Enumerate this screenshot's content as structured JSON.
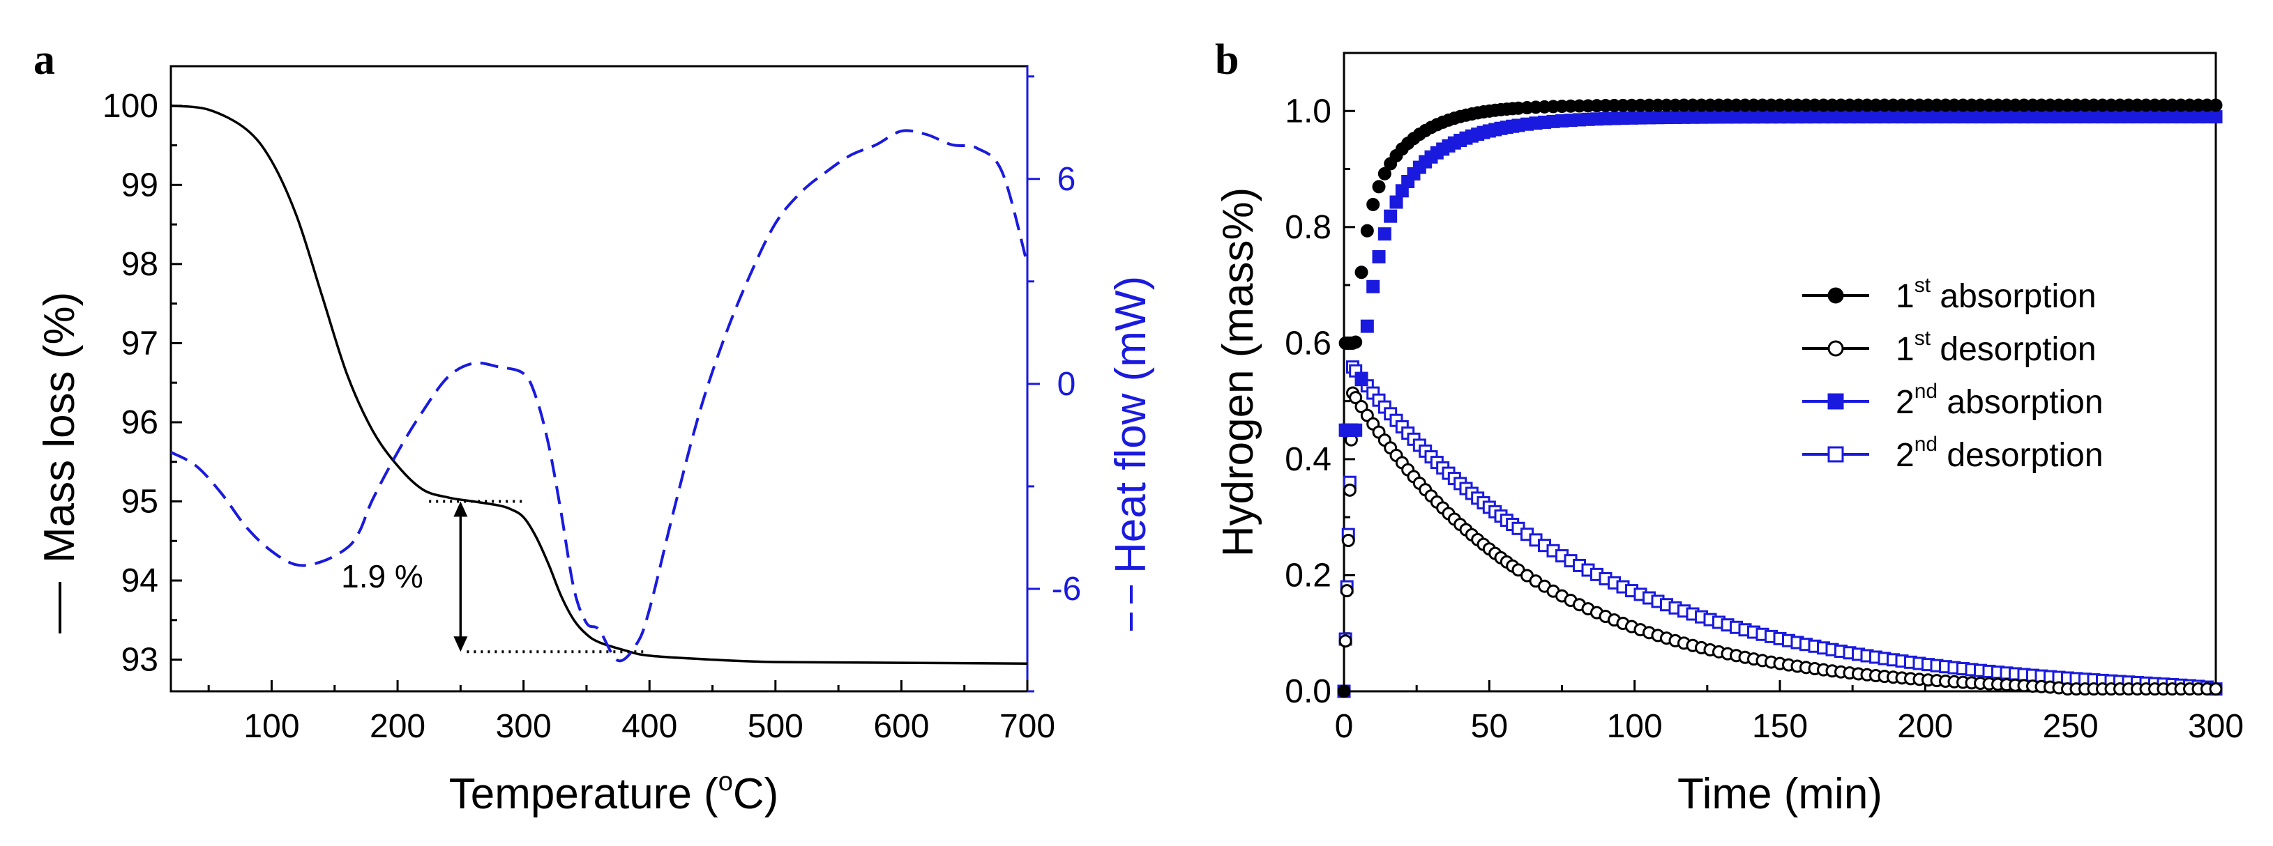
{
  "colors": {
    "black": "#000000",
    "blue": "#1a1adf"
  },
  "chart_data": [
    {
      "panel": "a",
      "type": "line",
      "xlabel": "Temperature (°C)",
      "xlabel_main": "Temperature (",
      "xlabel_sup": "o",
      "xlabel_unit": "C)",
      "xlim": [
        20,
        700
      ],
      "xticks": [
        100,
        200,
        300,
        400,
        500,
        600,
        700
      ],
      "ylabel_left": "Mass loss (%)",
      "ylim_left": [
        92.6,
        100.5
      ],
      "yticks_left": [
        93,
        94,
        95,
        96,
        97,
        98,
        99,
        100
      ],
      "ylabel_right": "Heat flow (mW)",
      "ylim_right": [
        -9,
        9.3
      ],
      "yticks_right": [
        -6,
        0,
        6
      ],
      "annotation": "1.9 %",
      "annotation_span": [
        93.1,
        95.0
      ],
      "series": [
        {
          "name": "Mass loss",
          "axis": "left",
          "style": "solid",
          "color": "#000000",
          "x": [
            20,
            50,
            80,
            100,
            120,
            140,
            160,
            180,
            200,
            220,
            240,
            260,
            280,
            290,
            300,
            310,
            320,
            330,
            340,
            350,
            360,
            380,
            400,
            450,
            500,
            600,
            700
          ],
          "y": [
            100.0,
            99.95,
            99.7,
            99.3,
            98.6,
            97.6,
            96.6,
            95.9,
            95.45,
            95.15,
            95.05,
            95.0,
            94.95,
            94.9,
            94.8,
            94.55,
            94.2,
            93.8,
            93.5,
            93.32,
            93.22,
            93.12,
            93.05,
            93.0,
            92.97,
            92.96,
            92.95
          ]
        },
        {
          "name": "Heat flow",
          "axis": "right",
          "style": "dashed",
          "color": "#1a1adf",
          "x": [
            20,
            40,
            60,
            80,
            100,
            120,
            140,
            160,
            170,
            180,
            200,
            220,
            240,
            260,
            280,
            300,
            310,
            320,
            330,
            340,
            350,
            360,
            375,
            390,
            400,
            420,
            440,
            460,
            480,
            500,
            520,
            540,
            560,
            580,
            600,
            620,
            640,
            660,
            680,
            700
          ],
          "y": [
            -2.0,
            -2.4,
            -3.2,
            -4.2,
            -4.9,
            -5.3,
            -5.2,
            -4.8,
            -4.3,
            -3.4,
            -2.0,
            -0.8,
            0.2,
            0.6,
            0.5,
            0.3,
            -0.4,
            -1.8,
            -3.8,
            -6.0,
            -7.0,
            -7.2,
            -8.1,
            -7.6,
            -6.6,
            -3.6,
            -0.8,
            1.4,
            3.2,
            4.7,
            5.6,
            6.2,
            6.7,
            7.0,
            7.4,
            7.3,
            7.0,
            6.9,
            6.2,
            3.5
          ]
        }
      ]
    },
    {
      "panel": "b",
      "type": "scatter",
      "xlabel": "Time (min)",
      "ylabel": "Hydrogen (mass%)",
      "xlim": [
        0,
        300
      ],
      "ylim": [
        0.0,
        1.1
      ],
      "xticks": [
        0,
        50,
        100,
        150,
        200,
        250,
        300
      ],
      "yticks": [
        0.0,
        0.2,
        0.4,
        0.6,
        0.8,
        1.0
      ],
      "ytick_labels": [
        "0.0",
        "0.2",
        "0.4",
        "0.6",
        "0.8",
        "1.0"
      ],
      "legend_position": "center-right",
      "series": [
        {
          "name": "1st absorption",
          "label_main": "1",
          "label_sup": "st",
          "label_rest": " absorption",
          "marker": "filled-circle",
          "color": "#000000",
          "model": "abs",
          "a": 1.01,
          "t1": 3.0,
          "t2": 15,
          "w": 0.72,
          "y0": 0.6
        },
        {
          "name": "1st desorption",
          "label_main": "1",
          "label_sup": "st",
          "label_rest": " desorption",
          "marker": "open-circle",
          "color": "#000000",
          "model": "des",
          "a": 1.0,
          "b": 0.52,
          "t": 2,
          "k": 72,
          "end": 248
        },
        {
          "name": "2nd absorption",
          "label_main": "2",
          "label_sup": "nd",
          "label_rest": " absorption",
          "marker": "filled-square",
          "color": "#1a1adf",
          "model": "abs",
          "a": 0.99,
          "t1": 5.5,
          "t2": 20,
          "w": 0.7,
          "y0": 0.45
        },
        {
          "name": "2nd desorption",
          "label_main": "2",
          "label_sup": "nd",
          "label_rest": " desorption",
          "marker": "open-square",
          "color": "#1a1adf",
          "model": "des",
          "a": 1.0,
          "b": 0.54,
          "t": 6,
          "k": 95,
          "end": 300
        }
      ]
    }
  ]
}
